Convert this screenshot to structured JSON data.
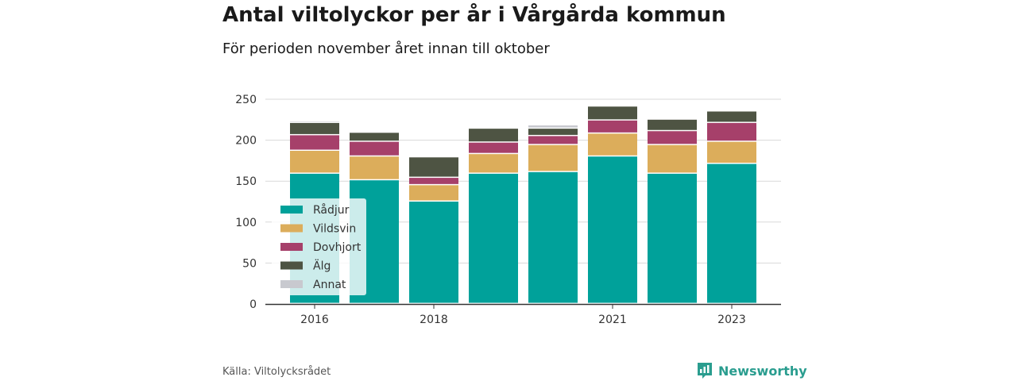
{
  "header": {
    "title": "Antal viltolyckor per år i Vårgårda kommun",
    "subtitle": "För perioden november året innan till oktober"
  },
  "footer": {
    "source": "Källa: Viltolycksrådet",
    "brand": "Newsworthy",
    "brand_icon": "newsworthy-logo-icon",
    "brand_color": "#2a9d8f"
  },
  "chart_data": {
    "type": "bar",
    "stacked": true,
    "categories": [
      "2016",
      "2017",
      "2018",
      "2019",
      "2020",
      "2021",
      "2022",
      "2023"
    ],
    "x_tick_labels": [
      "2016",
      "",
      "2018",
      "",
      "",
      "2021",
      "",
      "2023"
    ],
    "series": [
      {
        "name": "Rådjur",
        "color": "#00a19a",
        "values": [
          159,
          151,
          125,
          159,
          161,
          180,
          159,
          171
        ]
      },
      {
        "name": "Vildsvin",
        "color": "#dcad5b",
        "values": [
          28,
          29,
          20,
          24,
          33,
          28,
          35,
          27
        ]
      },
      {
        "name": "Dovhjort",
        "color": "#a6406a",
        "values": [
          19,
          18,
          9,
          14,
          11,
          16,
          17,
          23
        ]
      },
      {
        "name": "Älg",
        "color": "#4e5443",
        "values": [
          15,
          11,
          25,
          17,
          9,
          17,
          14,
          14
        ]
      },
      {
        "name": "Annat",
        "color": "#c8c9cf",
        "values": [
          2,
          0,
          0,
          0,
          4,
          0,
          0,
          0
        ]
      }
    ],
    "ylim": [
      0,
      250
    ],
    "yticks": [
      0,
      50,
      100,
      150,
      200,
      250
    ],
    "grid": true,
    "legend_position": "bottom-left inside plot"
  }
}
